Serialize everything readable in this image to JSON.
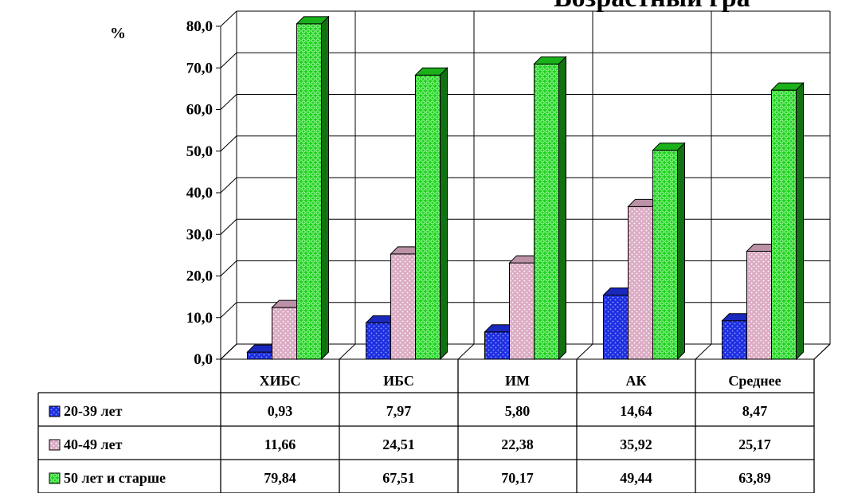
{
  "chart_data": {
    "type": "bar",
    "title": "Возрастный гра",
    "ylabel": "%",
    "ylim": [
      0,
      80
    ],
    "ytick_step": 10,
    "ytick_labels": [
      "0,0",
      "10,0",
      "20,0",
      "30,0",
      "40,0",
      "50,0",
      "60,0",
      "70,0",
      "80,0"
    ],
    "categories": [
      "ХИБС",
      "ИБС",
      "ИМ",
      "АК",
      "Среднее"
    ],
    "grid": true,
    "legend": "data-table-left",
    "series": [
      {
        "name": "20-39 лет",
        "values": [
          0.93,
          7.97,
          5.8,
          14.64,
          8.47
        ],
        "labels": [
          "0,93",
          "7,97",
          "5,80",
          "14,64",
          "8,47"
        ],
        "color": "#1e2fe0",
        "pattern_color": "#8ea0ff"
      },
      {
        "name": "40-49 лет",
        "values": [
          11.66,
          24.51,
          22.38,
          35.92,
          25.17
        ],
        "labels": [
          "11,66",
          "24,51",
          "22,38",
          "35,92",
          "25,17"
        ],
        "color": "#dcacc4",
        "pattern_color": "#ffffff"
      },
      {
        "name": "50 лет и старше",
        "values": [
          79.84,
          67.51,
          70.17,
          49.44,
          63.89
        ],
        "labels": [
          "79,84",
          "67,51",
          "70,17",
          "49,44",
          "63,89"
        ],
        "color": "#20d020",
        "pattern_color": "#b8ffb8"
      }
    ]
  }
}
